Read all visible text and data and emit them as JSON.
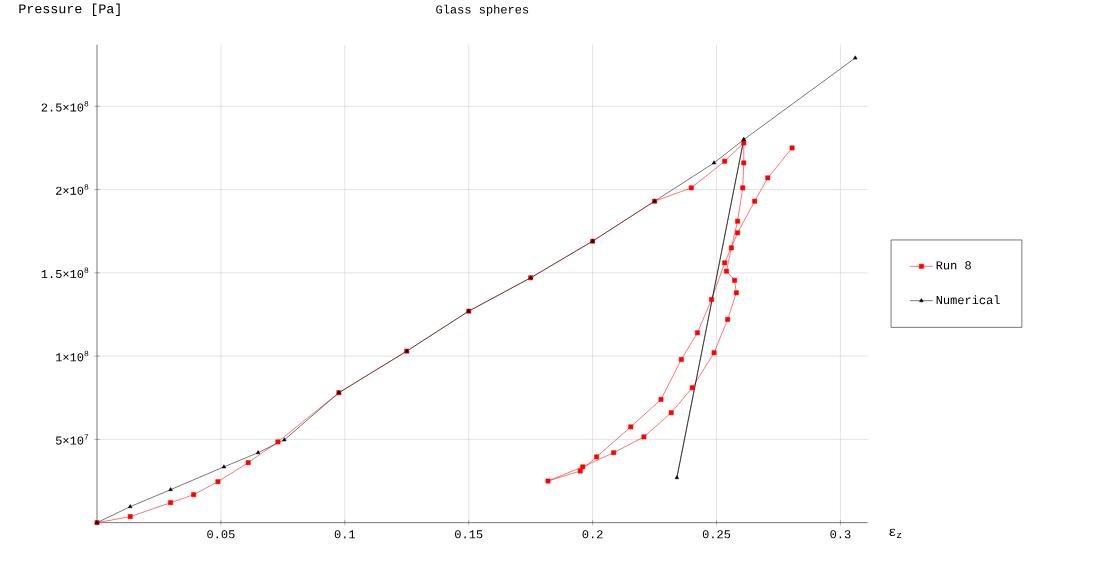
{
  "chart_data": {
    "type": "line",
    "title": "Glass spheres",
    "xlabel": "ε$_{z}$",
    "ylabel": "Pressure [Pa]",
    "xlim": [
      0,
      0.311
    ],
    "ylim": [
      0,
      287000000
    ],
    "xticks": [
      0.05,
      0.1,
      0.15,
      0.2,
      0.25,
      0.3
    ],
    "yticks": [
      {
        "value": 50000000,
        "label": "5×10$^{7}$"
      },
      {
        "value": 100000000,
        "label": "1×10$^{8}$"
      },
      {
        "value": 150000000,
        "label": "1.5×10$^{8}$"
      },
      {
        "value": 200000000,
        "label": "2×10$^{8}$"
      },
      {
        "value": 250000000,
        "label": "2.5×10$^{8}$"
      }
    ],
    "grid": true,
    "legend": "right",
    "series": [
      {
        "name": "Run 8",
        "color": "#ff0000",
        "marker": "square",
        "x": [
          0,
          0.0134,
          0.0297,
          0.039,
          0.0488,
          0.061,
          0.073,
          0.0976,
          0.125,
          0.15,
          0.175,
          0.2,
          0.225,
          0.2398,
          0.2533,
          0.261,
          0.261,
          0.2606,
          0.2585,
          0.256,
          0.254,
          0.2573,
          0.258,
          0.2545,
          0.249,
          0.2402,
          0.2317,
          0.2207,
          0.2085,
          0.196,
          0.182,
          0.195,
          0.2016,
          0.2154,
          0.2276,
          0.2358,
          0.2423,
          0.248,
          0.2533,
          0.2585,
          0.2654,
          0.2707,
          0.2805
        ],
        "values": [
          0,
          3600000,
          12000000,
          16800000,
          24600000,
          36000000,
          48500000,
          78000000,
          103000000,
          127000000,
          147000000,
          169000000,
          193000000,
          201000000,
          217000000,
          228000000,
          216000000,
          201000000,
          181000000,
          165000000,
          151000000,
          145500000,
          138000000,
          122000000,
          102000000,
          81000000,
          66000000,
          51500000,
          42000000,
          33500000,
          25000000,
          31000000,
          39500000,
          57500000,
          74000000,
          98000000,
          114000000,
          134000000,
          156000000,
          174000000,
          193000000,
          207000000,
          225000000
        ]
      },
      {
        "name": "Numerical",
        "color": "#000000",
        "marker": "triangle",
        "x": [
          0,
          0.0134,
          0.0297,
          0.0512,
          0.065,
          0.0756,
          0.0976,
          0.125,
          0.15,
          0.175,
          0.2,
          0.225,
          0.249,
          0.261,
          0.234,
          0.261,
          0.306
        ],
        "values": [
          0,
          9600000,
          19800000,
          33500000,
          42000000,
          49700000,
          78000000,
          103000000,
          127000000,
          147000000,
          169000000,
          193000000,
          216000000,
          230000000,
          27000000,
          230000000,
          279000000
        ]
      }
    ]
  }
}
